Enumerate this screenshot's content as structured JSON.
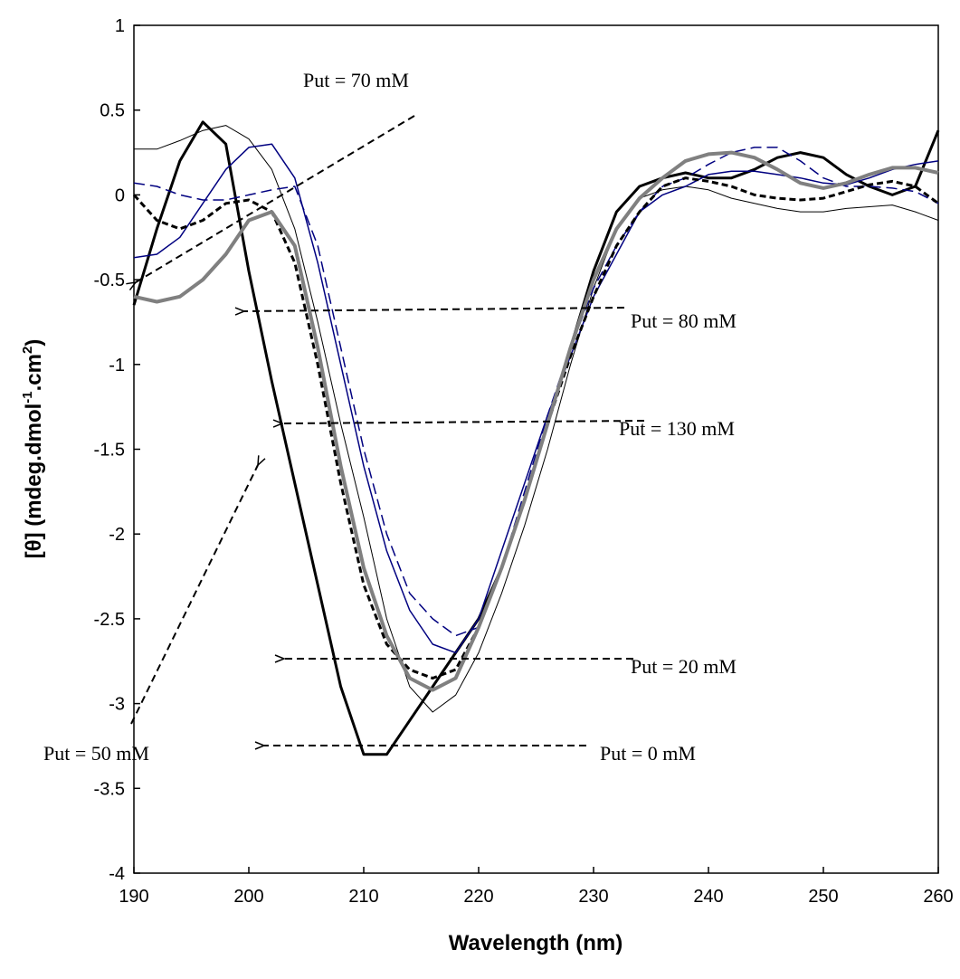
{
  "chart_data": {
    "type": "line",
    "xlabel": "Wavelength (nm)",
    "ylabel": [
      "[θ] (mdeg.dmol",
      "-1",
      ".cm",
      "2",
      ")"
    ],
    "x": [
      190,
      192,
      194,
      196,
      198,
      200,
      202,
      204,
      206,
      208,
      210,
      212,
      214,
      216,
      218,
      220,
      222,
      224,
      226,
      228,
      230,
      232,
      234,
      236,
      238,
      240,
      242,
      244,
      246,
      248,
      250,
      252,
      254,
      256,
      258,
      260
    ],
    "xlim": [
      190,
      260
    ],
    "xticks": [
      190,
      200,
      210,
      220,
      230,
      240,
      250,
      260
    ],
    "ylim": [
      -4,
      1
    ],
    "yticks": [
      1,
      0.5,
      0,
      -0.5,
      -1,
      -1.5,
      -2,
      -2.5,
      -3,
      -3.5,
      -4
    ],
    "grid": false,
    "series": [
      {
        "color": "#000000",
        "linewidth": 3,
        "dashed": false,
        "values": [
          -0.65,
          -0.2,
          0.2,
          0.43,
          0.3,
          -0.45,
          -1.1,
          -1.7,
          -2.3,
          -2.9,
          -3.3,
          -3.3,
          -3.1,
          -2.9,
          -2.7,
          -2.5,
          -2.2,
          -1.8,
          -1.35,
          -0.9,
          -0.45,
          -0.1,
          0.05,
          0.1,
          0.13,
          0.1,
          0.1,
          0.15,
          0.22,
          0.25,
          0.22,
          0.12,
          0.05,
          0.0,
          0.05,
          0.38
        ]
      },
      {
        "color": "#000000",
        "linewidth": 1,
        "dashed": false,
        "values": [
          0.27,
          0.27,
          0.32,
          0.38,
          0.41,
          0.33,
          0.15,
          -0.2,
          -0.75,
          -1.35,
          -1.9,
          -2.5,
          -2.9,
          -3.05,
          -2.95,
          -2.7,
          -2.35,
          -1.95,
          -1.5,
          -1.0,
          -0.55,
          -0.2,
          -0.02,
          0.03,
          0.05,
          0.03,
          -0.02,
          -0.05,
          -0.08,
          -0.1,
          -0.1,
          -0.08,
          -0.07,
          -0.06,
          -0.1,
          -0.15
        ]
      },
      {
        "color": "#000080",
        "linewidth": 1.5,
        "dashed": false,
        "values": [
          -0.37,
          -0.35,
          -0.25,
          -0.05,
          0.15,
          0.28,
          0.3,
          0.1,
          -0.4,
          -1.0,
          -1.6,
          -2.1,
          -2.45,
          -2.65,
          -2.7,
          -2.5,
          -2.1,
          -1.7,
          -1.3,
          -0.95,
          -0.6,
          -0.35,
          -0.1,
          0.0,
          0.05,
          0.12,
          0.14,
          0.14,
          0.12,
          0.1,
          0.07,
          0.06,
          0.1,
          0.15,
          0.18,
          0.2
        ]
      },
      {
        "color": "#000080",
        "linewidth": 1.5,
        "dashed": true,
        "values": [
          0.07,
          0.05,
          0.0,
          -0.03,
          -0.03,
          0.0,
          0.03,
          0.05,
          -0.3,
          -0.9,
          -1.5,
          -2.0,
          -2.35,
          -2.5,
          -2.6,
          -2.55,
          -2.2,
          -1.75,
          -1.3,
          -0.9,
          -0.55,
          -0.3,
          -0.1,
          0.05,
          0.1,
          0.18,
          0.25,
          0.28,
          0.28,
          0.2,
          0.1,
          0.05,
          0.05,
          0.04,
          0.02,
          -0.05
        ]
      },
      {
        "color": "#000000",
        "linewidth": 3,
        "dashed": true,
        "values": [
          0.0,
          -0.15,
          -0.2,
          -0.15,
          -0.05,
          -0.03,
          -0.1,
          -0.4,
          -1.0,
          -1.7,
          -2.3,
          -2.65,
          -2.8,
          -2.85,
          -2.8,
          -2.55,
          -2.2,
          -1.8,
          -1.35,
          -0.95,
          -0.6,
          -0.3,
          -0.1,
          0.05,
          0.1,
          0.08,
          0.05,
          0.0,
          -0.02,
          -0.03,
          -0.02,
          0.02,
          0.06,
          0.08,
          0.05,
          -0.05
        ]
      },
      {
        "color": "#808080",
        "linewidth": 4,
        "dashed": false,
        "values": [
          -0.6,
          -0.63,
          -0.6,
          -0.5,
          -0.35,
          -0.15,
          -0.1,
          -0.3,
          -0.9,
          -1.6,
          -2.2,
          -2.6,
          -2.85,
          -2.92,
          -2.85,
          -2.55,
          -2.2,
          -1.8,
          -1.35,
          -0.9,
          -0.5,
          -0.2,
          -0.02,
          0.1,
          0.2,
          0.24,
          0.25,
          0.22,
          0.15,
          0.07,
          0.04,
          0.07,
          0.12,
          0.16,
          0.16,
          0.13
        ]
      }
    ],
    "annotations": [
      "Put = 70 mM",
      "Put = 80 mM",
      "Put = 130 mM",
      "Put = 20 mM",
      "Put = 0 mM",
      "Put = 50 mM"
    ]
  }
}
